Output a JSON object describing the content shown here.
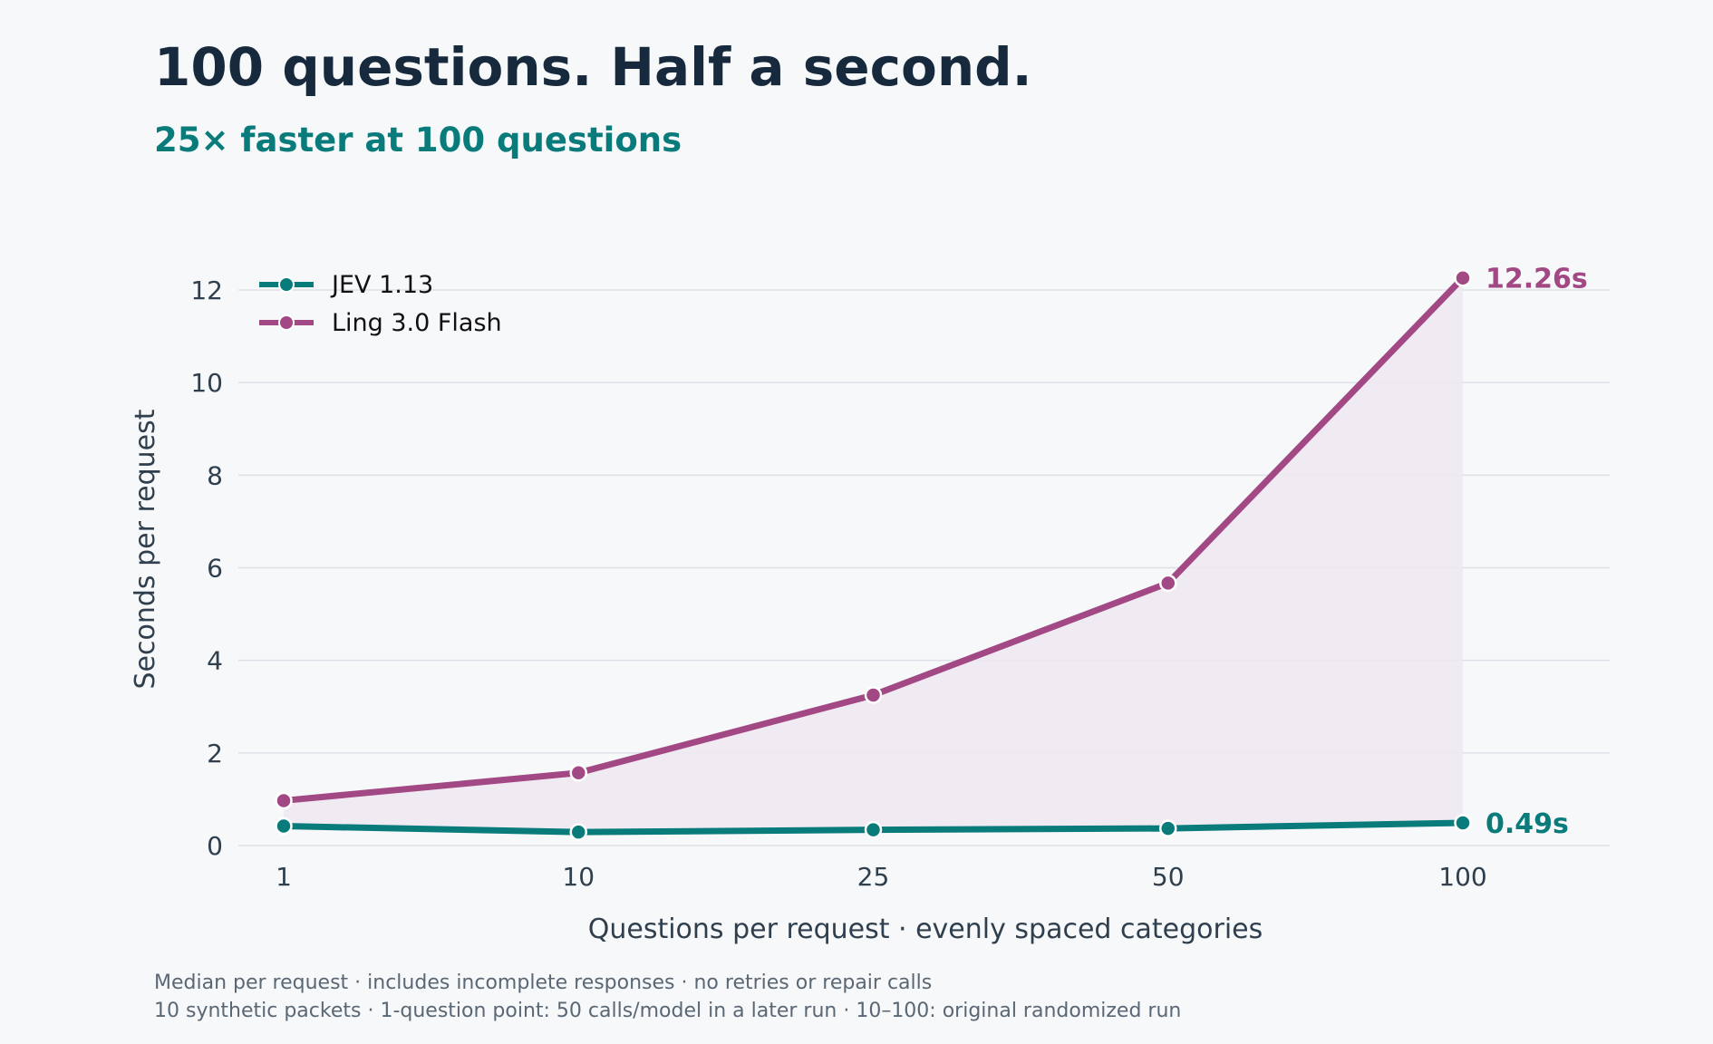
{
  "title": "100 questions. Half a second.",
  "subtitle": "25× faster at 100 questions",
  "footnotes": [
    "Median per request · includes incomplete responses · no retries or repair calls",
    "10 synthetic packets · 1-question point: 50 calls/model in a later run · 10–100: original randomized run"
  ],
  "colors": {
    "background": "#f7f8fa",
    "title": "#172a3d",
    "accent": "#0a7b7b",
    "jev": "#0a7b7b",
    "ling": "#a24884",
    "area_fill": "#efe9f0",
    "grid": "#dde1e7"
  },
  "chart_data": {
    "type": "line",
    "title": "100 questions. Half a second.",
    "subtitle": "25× faster at 100 questions",
    "xlabel": "Questions per request · evenly spaced categories",
    "ylabel": "Seconds per request",
    "categories": [
      "1",
      "10",
      "25",
      "50",
      "100"
    ],
    "ylim": [
      0,
      13
    ],
    "yticks": [
      0,
      2,
      4,
      6,
      8,
      10,
      12
    ],
    "grid": true,
    "legend_position": "top-left",
    "series": [
      {
        "name": "JEV 1.13",
        "color": "#0a7b7b",
        "values": [
          0.42,
          0.29,
          0.34,
          0.37,
          0.49
        ],
        "end_label": "0.49s"
      },
      {
        "name": "Ling 3.0 Flash",
        "color": "#a24884",
        "values": [
          0.97,
          1.57,
          3.25,
          5.67,
          12.26
        ],
        "end_label": "12.26s"
      }
    ],
    "shaded_between_series": true
  }
}
